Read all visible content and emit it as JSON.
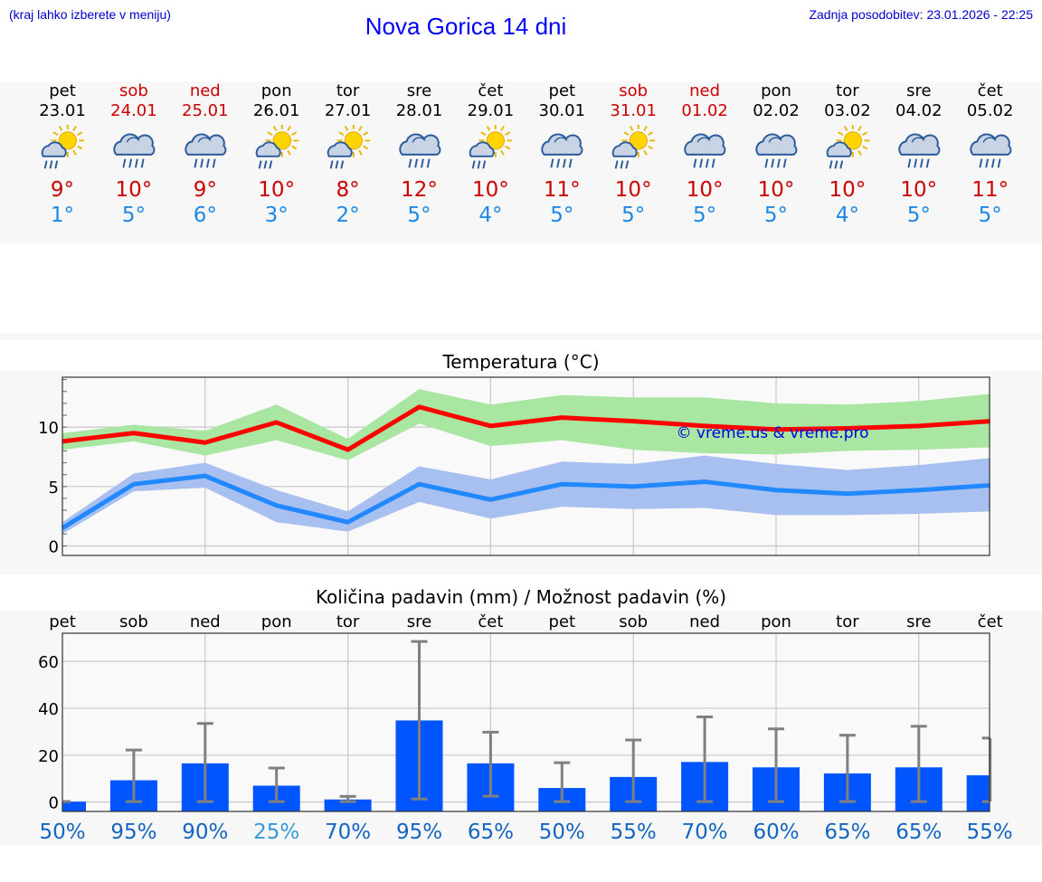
{
  "header": {
    "left_note": "(kraj lahko izberete v meniju)",
    "title": "Nova Gorica 14 dni",
    "updated": "Zadnja posodobitev: 23.01.2026 - 22:25"
  },
  "colors": {
    "weekend": "#cc0000",
    "max_temp": "#cc0000",
    "min_temp": "#1e88e5",
    "max_line": "#ff0000",
    "max_band": "#a8e6a1",
    "min_line": "#2288ff",
    "min_band": "#a8c0f0",
    "bar": "#0055ff",
    "error": "#808080",
    "prob_dark": "#1565c0",
    "prob_light": "#3399dd"
  },
  "forecast": [
    {
      "day": "pet",
      "date": "23.01",
      "weekend": false,
      "icon": "sun-cloud-rain-icon",
      "tmax": "9°",
      "tmin": "1°"
    },
    {
      "day": "sob",
      "date": "24.01",
      "weekend": true,
      "icon": "cloud-rain-icon",
      "tmax": "10°",
      "tmin": "5°"
    },
    {
      "day": "ned",
      "date": "25.01",
      "weekend": true,
      "icon": "cloud-rain-icon",
      "tmax": "9°",
      "tmin": "6°"
    },
    {
      "day": "pon",
      "date": "26.01",
      "weekend": false,
      "icon": "sun-cloud-rain-icon",
      "tmax": "10°",
      "tmin": "3°"
    },
    {
      "day": "tor",
      "date": "27.01",
      "weekend": false,
      "icon": "sun-cloud-rain-icon",
      "tmax": "8°",
      "tmin": "2°"
    },
    {
      "day": "sre",
      "date": "28.01",
      "weekend": false,
      "icon": "cloud-rain-icon",
      "tmax": "12°",
      "tmin": "5°"
    },
    {
      "day": "čet",
      "date": "29.01",
      "weekend": false,
      "icon": "sun-cloud-rain-icon",
      "tmax": "10°",
      "tmin": "4°"
    },
    {
      "day": "pet",
      "date": "30.01",
      "weekend": false,
      "icon": "cloud-rain-icon",
      "tmax": "11°",
      "tmin": "5°"
    },
    {
      "day": "sob",
      "date": "31.01",
      "weekend": true,
      "icon": "sun-cloud-rain-icon",
      "tmax": "10°",
      "tmin": "5°"
    },
    {
      "day": "ned",
      "date": "01.02",
      "weekend": true,
      "icon": "cloud-rain-icon",
      "tmax": "10°",
      "tmin": "5°"
    },
    {
      "day": "pon",
      "date": "02.02",
      "weekend": false,
      "icon": "cloud-rain-icon",
      "tmax": "10°",
      "tmin": "5°"
    },
    {
      "day": "tor",
      "date": "03.02",
      "weekend": false,
      "icon": "sun-cloud-rain-icon",
      "tmax": "10°",
      "tmin": "4°"
    },
    {
      "day": "sre",
      "date": "04.02",
      "weekend": false,
      "icon": "cloud-rain-icon",
      "tmax": "10°",
      "tmin": "5°"
    },
    {
      "day": "čet",
      "date": "05.02",
      "weekend": false,
      "icon": "cloud-rain-icon",
      "tmax": "11°",
      "tmin": "5°"
    }
  ],
  "chart_data": [
    {
      "type": "line",
      "title": "Temperatura (°C)",
      "watermark": "© vreme.us & vreme.pro",
      "x": [
        0,
        1,
        2,
        3,
        4,
        5,
        6,
        7,
        8,
        9,
        10,
        11,
        12,
        13
      ],
      "ylim": [
        -0.8,
        14.2
      ],
      "yticks": [
        0,
        5,
        10
      ],
      "grid": true,
      "series": [
        {
          "name": "max",
          "values": [
            8.8,
            9.5,
            8.7,
            10.4,
            8.1,
            11.7,
            10.1,
            10.8,
            10.5,
            10.1,
            9.8,
            9.9,
            10.1,
            10.5
          ],
          "band_low": [
            8.1,
            8.8,
            7.6,
            8.9,
            7.2,
            10.3,
            8.4,
            8.9,
            8.1,
            7.8,
            7.7,
            8.0,
            8.1,
            8.3
          ],
          "band_high": [
            9.5,
            10.2,
            9.7,
            11.9,
            9.0,
            13.2,
            11.9,
            12.7,
            12.5,
            12.5,
            12.0,
            11.9,
            12.2,
            12.8
          ]
        },
        {
          "name": "min",
          "values": [
            1.5,
            5.2,
            5.9,
            3.4,
            2.0,
            5.2,
            3.9,
            5.2,
            5.0,
            5.4,
            4.7,
            4.4,
            4.7,
            5.1
          ],
          "band_low": [
            1.0,
            4.6,
            4.9,
            2.0,
            1.2,
            3.7,
            2.3,
            3.3,
            3.1,
            3.2,
            2.6,
            2.6,
            2.7,
            2.9
          ],
          "band_high": [
            2.0,
            6.1,
            7.0,
            4.7,
            2.9,
            6.7,
            5.6,
            7.1,
            6.9,
            7.6,
            6.9,
            6.4,
            6.8,
            7.4
          ]
        }
      ]
    },
    {
      "type": "bar",
      "title": "Količina padavin (mm) / Možnost padavin (%)",
      "categories": [
        "pet",
        "sob",
        "ned",
        "pon",
        "tor",
        "sre",
        "čet",
        "pet",
        "sob",
        "ned",
        "pon",
        "tor",
        "sre",
        "čet"
      ],
      "values": [
        0.2,
        9.3,
        16.5,
        7.0,
        1.1,
        34.8,
        16.5,
        6.0,
        10.7,
        17.1,
        14.8,
        12.2,
        14.8,
        11.4
      ],
      "error_low": [
        0.2,
        0.2,
        0.2,
        0.2,
        0.2,
        1.3,
        2.5,
        0.2,
        0.2,
        0.2,
        0.2,
        0.2,
        0.2,
        0.2
      ],
      "error_high": [
        0.2,
        22.2,
        33.5,
        14.5,
        2.4,
        68.5,
        29.8,
        16.8,
        26.5,
        36.3,
        31.2,
        28.5,
        32.3,
        27.3
      ],
      "probability": [
        "50%",
        "95%",
        "90%",
        "25%",
        "70%",
        "95%",
        "65%",
        "50%",
        "55%",
        "70%",
        "60%",
        "65%",
        "65%",
        "55%"
      ],
      "ylim": [
        -4,
        72
      ],
      "yticks": [
        0,
        20,
        40,
        60
      ],
      "grid": true
    }
  ]
}
